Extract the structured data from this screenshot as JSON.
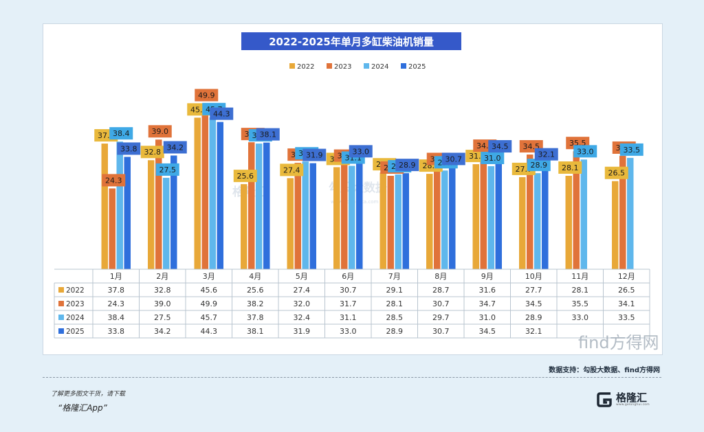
{
  "chart_data": {
    "type": "bar",
    "title": "2022-2025年单月多缸柴油机销量",
    "categories": [
      "1月",
      "2月",
      "3月",
      "4月",
      "5月",
      "6月",
      "7月",
      "8月",
      "9月",
      "10月",
      "11月",
      "12月"
    ],
    "series": [
      {
        "name": "2022",
        "color": "#e8a838",
        "label_color": "#e9b93c",
        "values": [
          37.8,
          32.8,
          45.6,
          25.6,
          27.4,
          30.7,
          29.1,
          28.7,
          31.6,
          27.7,
          28.1,
          26.5
        ]
      },
      {
        "name": "2023",
        "color": "#e0733a",
        "label_color": "#e0733a",
        "values": [
          24.3,
          39.0,
          49.9,
          38.2,
          32.0,
          31.7,
          28.1,
          30.7,
          34.7,
          34.5,
          35.5,
          34.1
        ]
      },
      {
        "name": "2024",
        "color": "#5fb7ec",
        "label_color": "#3fa9e6",
        "values": [
          38.4,
          27.5,
          45.7,
          37.8,
          32.4,
          31.1,
          28.5,
          29.7,
          31.0,
          28.9,
          33.0,
          33.5
        ]
      },
      {
        "name": "2025",
        "color": "#2f6fdc",
        "label_color": "#3d6fd2",
        "values": [
          33.8,
          34.2,
          44.3,
          38.1,
          31.9,
          33.0,
          28.9,
          30.7,
          34.5,
          32.1,
          null,
          null
        ]
      }
    ],
    "table_rows": [
      [
        "37.8",
        "32.8",
        "45.6",
        "25.6",
        "27.4",
        "30.7",
        "29.1",
        "28.7",
        "31.6",
        "27.7",
        "28.1",
        "26.5"
      ],
      [
        "24.3",
        "39.0",
        "49.9",
        "38.2",
        "32.0",
        "31.7",
        "28.1",
        "30.7",
        "34.7",
        "34.5",
        "35.5",
        "34.1"
      ],
      [
        "38.4",
        "27.5",
        "45.7",
        "37.8",
        "32.4",
        "31.1",
        "28.5",
        "29.7",
        "31.0",
        "28.9",
        "33.0",
        "33.5"
      ],
      [
        "33.8",
        "34.2",
        "44.3",
        "38.1",
        "31.9",
        "33.0",
        "28.9",
        "30.7",
        "34.5",
        "32.1",
        "",
        ""
      ]
    ],
    "ylim": [
      0,
      50
    ],
    "legend_position": "top-center",
    "grid": false,
    "title_bg": "#3559c9"
  },
  "watermarks": {
    "wm1": "格隆汇",
    "wm2": "勾股大数据",
    "wm2_sub": "www.gogudata.com",
    "wm3": "find方得网"
  },
  "footer": {
    "source": "数据支持：勾股大数据、find方得网",
    "promo_line1": "了解更多图文干货，请下载",
    "promo_line2": "“格隆汇App”",
    "brand_name": "格隆汇",
    "brand_url": "www.gelonghui.com"
  }
}
